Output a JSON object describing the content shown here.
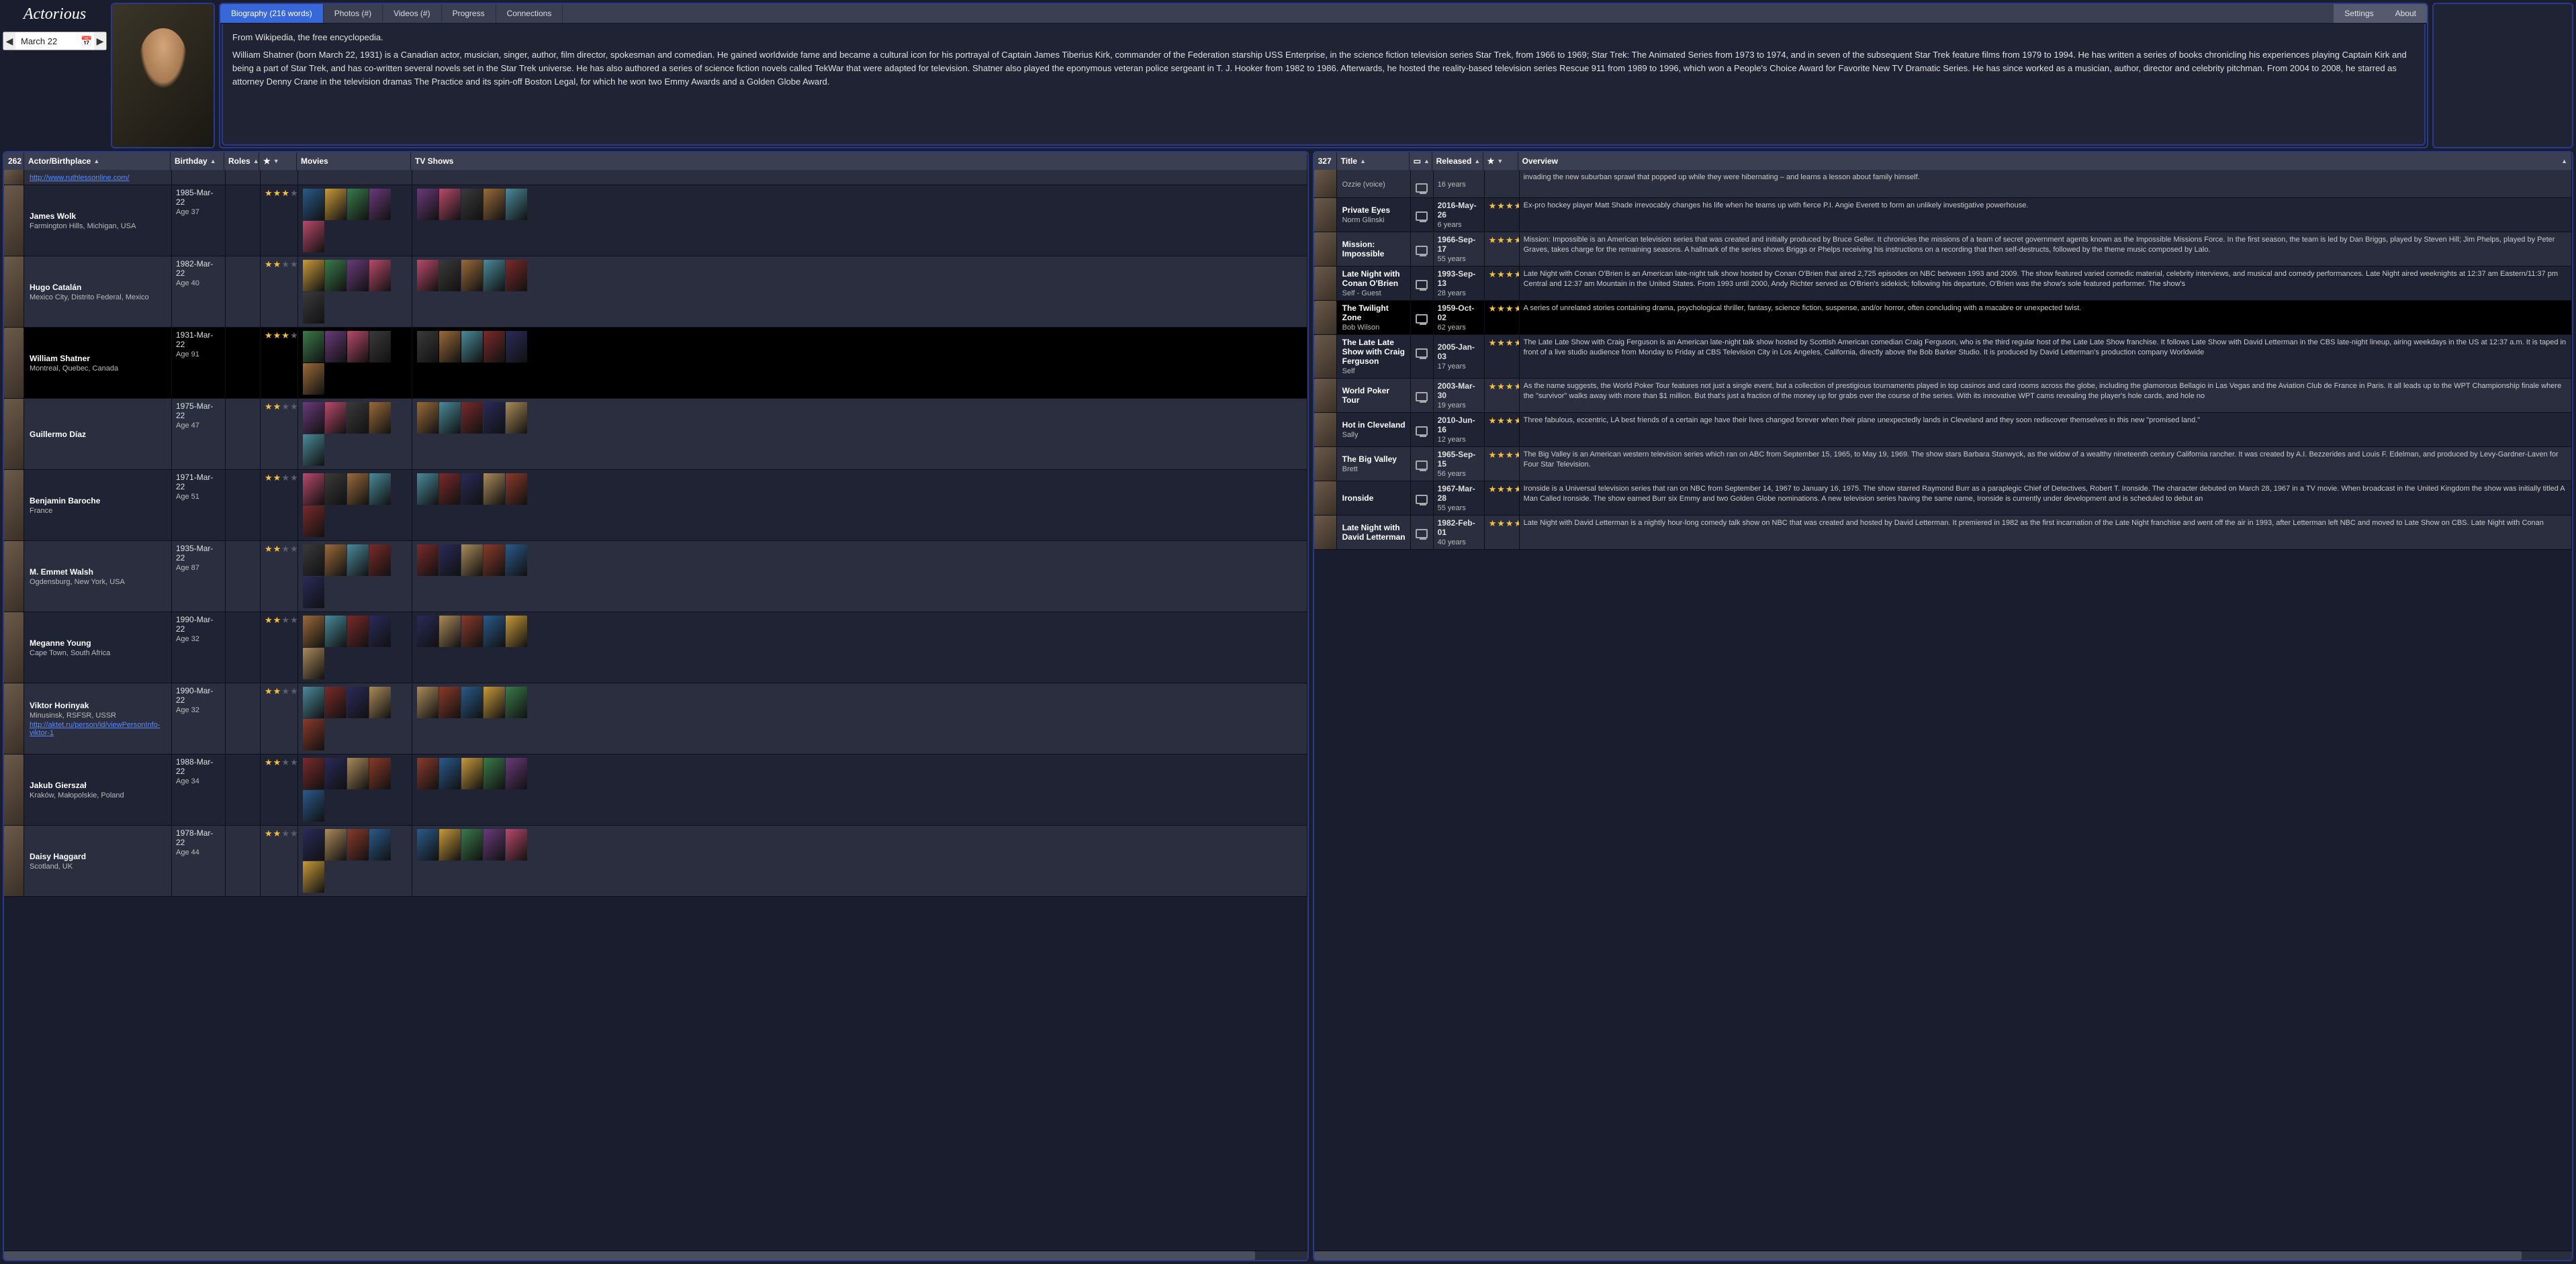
{
  "app": {
    "logo": "Actorious"
  },
  "date_picker": {
    "value": "March 22"
  },
  "tabs": {
    "biography": "Biography (216 words)",
    "photos": "Photos (#)",
    "videos": "Videos (#)",
    "progress": "Progress",
    "connections": "Connections",
    "settings": "Settings",
    "about": "About"
  },
  "bio": {
    "source": "From Wikipedia, the free encyclopedia.",
    "text": "William Shatner (born March 22, 1931) is a Canadian actor, musician, singer, author, film director, spokesman and comedian. He gained worldwide fame and became a cultural icon for his portrayal of Captain James Tiberius Kirk, commander of the Federation starship USS Enterprise, in the science fiction television series Star Trek, from 1966 to 1969; Star Trek: The Animated Series from 1973 to 1974, and in seven of the subsequent Star Trek feature films from 1979 to 1994. He has written a series of books chronicling his experiences playing Captain Kirk and being a part of Star Trek, and has co-written several novels set in the Star Trek universe. He has also authored a series of science fiction novels called TekWar that were adapted for television. Shatner also played the eponymous veteran police sergeant in T. J. Hooker from 1982 to 1986. Afterwards, he hosted the reality-based television series Rescue 911 from 1989 to 1996, which won a People's Choice Award for Favorite New TV Dramatic Series. He has since worked as a musician, author, director and celebrity pitchman. From 2004 to 2008, he starred as attorney Denny Crane in the television dramas The Practice and its spin-off Boston Legal, for which he won two Emmy Awards and a Golden Globe Award."
  },
  "left_grid": {
    "count": "262",
    "headers": {
      "actor": "Actor/Birthplace",
      "birthday": "Birthday",
      "roles": "Roles",
      "movies": "Movies",
      "tv": "TV Shows"
    },
    "rows": [
      {
        "name": "",
        "place": "",
        "link": "http://www.ruthlessonline.com/",
        "bday": "",
        "age": "",
        "stars": 0,
        "selected": false,
        "partial": true
      },
      {
        "name": "James Wolk",
        "place": "Farmington Hills, Michigan, USA",
        "bday": "1985-Mar-22",
        "age": "Age 37",
        "stars": 3
      },
      {
        "name": "Hugo Catalán",
        "place": "Mexico City, Distrito Federal, Mexico",
        "bday": "1982-Mar-22",
        "age": "Age 40",
        "stars": 2
      },
      {
        "name": "William Shatner",
        "place": "Montreal, Quebec, Canada",
        "bday": "1931-Mar-22",
        "age": "Age 91",
        "stars": 3,
        "selected": true
      },
      {
        "name": "Guillermo Díaz",
        "place": "",
        "bday": "1975-Mar-22",
        "age": "Age 47",
        "stars": 2
      },
      {
        "name": "Benjamin Baroche",
        "place": "France",
        "bday": "1971-Mar-22",
        "age": "Age 51",
        "stars": 2
      },
      {
        "name": "M. Emmet Walsh",
        "place": "Ogdensburg, New York, USA",
        "bday": "1935-Mar-22",
        "age": "Age 87",
        "stars": 2
      },
      {
        "name": "Meganne Young",
        "place": "Cape Town, South Africa",
        "bday": "1990-Mar-22",
        "age": "Age 32",
        "stars": 2
      },
      {
        "name": "Viktor Horinyak",
        "place": "Minusinsk, RSFSR, USSR",
        "link": "http://aktet.ru/person/id/viewPersonInfo-viktor-1",
        "bday": "1990-Mar-22",
        "age": "Age 32",
        "stars": 2
      },
      {
        "name": "Jakub Gierszał",
        "place": "Kraków, Małopolskie, Poland",
        "bday": "1988-Mar-22",
        "age": "Age 34",
        "stars": 2
      },
      {
        "name": "Daisy Haggard",
        "place": "Scotland, UK",
        "bday": "1978-Mar-22",
        "age": "Age 44",
        "stars": 2
      }
    ]
  },
  "right_grid": {
    "count": "327",
    "headers": {
      "title": "Title",
      "released": "Released",
      "overview": "Overview"
    },
    "rows": [
      {
        "title": "",
        "role": "Ozzie (voice)",
        "released": "",
        "age": "16 years",
        "stars": 0,
        "overview": "invading the new suburban sprawl that popped up while they were hibernating – and learns a lesson about family himself.",
        "partial": true
      },
      {
        "title": "Private Eyes",
        "role": "Norm Glinski",
        "released": "2016-May-26",
        "age": "6 years",
        "stars": 4,
        "overview": "Ex-pro hockey player Matt Shade irrevocably changes his life when he teams up with fierce P.I. Angie Everett to form an unlikely investigative powerhouse."
      },
      {
        "title": "Mission: Impossible",
        "role": "",
        "released": "1966-Sep-17",
        "age": "55 years",
        "stars": 4,
        "overview": "Mission: Impossible is an American television series that was created and initially produced by Bruce Geller. It chronicles the missions of a team of secret government agents known as the Impossible Missions Force. In the first season, the team is led by Dan Briggs, played by Steven Hill; Jim Phelps, played by Peter Graves, takes charge for the remaining seasons. A hallmark of the series shows Briggs or Phelps receiving his instructions on a recording that then self-destructs, followed by the theme music composed by Lalo."
      },
      {
        "title": "Late Night with Conan O'Brien",
        "role": "Self - Guest",
        "released": "1993-Sep-13",
        "age": "28 years",
        "stars": 4,
        "overview": "Late Night with Conan O'Brien is an American late-night talk show hosted by Conan O'Brien that aired 2,725 episodes on NBC between 1993 and 2009. The show featured varied comedic material, celebrity interviews, and musical and comedy performances. Late Night aired weeknights at 12:37 am Eastern/11:37 pm Central and 12:37 am Mountain in the United States. From 1993 until 2000, Andy Richter served as O'Brien's sidekick; following his departure, O'Brien was the show's sole featured performer. The show's"
      },
      {
        "title": "The Twilight Zone",
        "role": "Bob Wilson",
        "released": "1959-Oct-02",
        "age": "62 years",
        "stars": 4,
        "overview": "A series of unrelated stories containing drama, psychological thriller, fantasy, science fiction, suspense, and/or horror, often concluding with a macabre or unexpected twist.",
        "selected": true
      },
      {
        "title": "The Late Late Show with Craig Ferguson",
        "role": "Self",
        "released": "2005-Jan-03",
        "age": "17 years",
        "stars": 4,
        "overview": "The Late Late Show with Craig Ferguson is an American late-night talk show hosted by Scottish American comedian Craig Ferguson, who is the third regular host of the Late Late Show franchise. It follows Late Show with David Letterman in the CBS late-night lineup, airing weekdays in the US at 12:37 a.m. It is taped in front of a live studio audience from Monday to Friday at CBS Television City in Los Angeles, California, directly above the Bob Barker Studio. It is produced by David Letterman's production company Worldwide"
      },
      {
        "title": "World Poker Tour",
        "role": "",
        "released": "2003-Mar-30",
        "age": "19 years",
        "stars": 4,
        "overview": "As the name suggests, the World Poker Tour features not just a single event, but a collection of prestigious tournaments played in top casinos and card rooms across the globe, including the glamorous Bellagio in Las Vegas and the Aviation Club de France in Paris. It all leads up to the WPT Championship finale where the \"survivor\" walks away with more than $1 million. But that's just a fraction of the money up for grabs over the course of the series. With its innovative WPT cams revealing the player's hole cards, and hole no"
      },
      {
        "title": "Hot in Cleveland",
        "role": "Sally",
        "released": "2010-Jun-16",
        "age": "12 years",
        "stars": 4,
        "overview": "Three fabulous, eccentric, LA best friends of a certain age have their lives changed forever when their plane unexpectedly lands in Cleveland and they soon rediscover themselves in this new \"promised land.\""
      },
      {
        "title": "The Big Valley",
        "role": "Brett",
        "released": "1965-Sep-15",
        "age": "56 years",
        "stars": 4,
        "overview": "The Big Valley is an American western television series which ran on ABC from September 15, 1965, to May 19, 1969. The show stars Barbara Stanwyck, as the widow of a wealthy nineteenth century California rancher. It was created by A.I. Bezzerides and Louis F. Edelman, and produced by Levy-Gardner-Laven for Four Star Television."
      },
      {
        "title": "Ironside",
        "role": "",
        "released": "1967-Mar-28",
        "age": "55 years",
        "stars": 4,
        "overview": "Ironside is a Universal television series that ran on NBC from September 14, 1967 to January 16, 1975. The show starred Raymond Burr as a paraplegic Chief of Detectives, Robert T. Ironside. The character debuted on March 28, 1967 in a TV movie. When broadcast in the United Kingdom the show was initially titled A Man Called Ironside. The show earned Burr six Emmy and two Golden Globe nominations. A new television series having the same name, Ironside is currently under development and is scheduled to debut an"
      },
      {
        "title": "Late Night with David Letterman",
        "role": "",
        "released": "1982-Feb-01",
        "age": "40 years",
        "stars": 4,
        "overview": "Late Night with David Letterman is a nightly hour-long comedy talk show on NBC that was created and hosted by David Letterman. It premiered in 1982 as the first incarnation of the Late Night franchise and went off the air in 1993, after Letterman left NBC and moved to Late Show on CBS. Late Night with Conan"
      }
    ]
  },
  "colors": {
    "poster_palette": [
      "#8a3a2a",
      "#2a5a8a",
      "#c89a3a",
      "#3a7a4a",
      "#6a3a7a",
      "#b84a6a",
      "#3a3a3a",
      "#9a6a3a",
      "#4a8a9a",
      "#7a2a2a",
      "#2a2a5a",
      "#aa8a5a"
    ]
  }
}
